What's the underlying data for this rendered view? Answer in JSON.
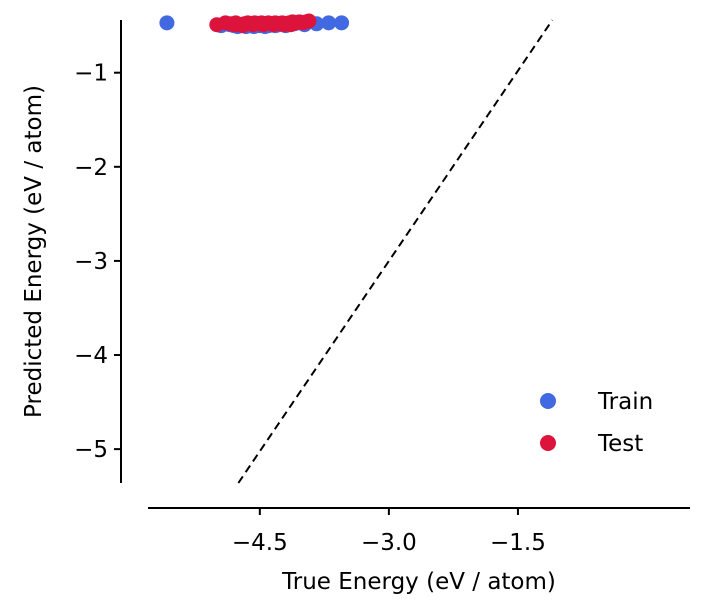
{
  "chart_data": {
    "type": "scatter",
    "title": "",
    "xlabel": "True Energy (eV / atom)",
    "ylabel": "Predicted Energy (eV / atom)",
    "xlim": [
      -5.8,
      0.5
    ],
    "ylim": [
      -5.36,
      -0.44
    ],
    "xticks": [
      -4.5,
      -3.0,
      -1.5
    ],
    "xtick_labels": [
      "−4.5",
      "−3.0",
      "−1.5"
    ],
    "yticks": [
      -5,
      -4,
      -3,
      -2,
      -1
    ],
    "ytick_labels": [
      "−5",
      "−4",
      "−3",
      "−2",
      "−1"
    ],
    "grid": false,
    "legend_position": "lower-right",
    "reference_line": {
      "style": "dashed",
      "color": "#000000",
      "x": [
        -4.75,
        -1.1
      ],
      "y": [
        -5.36,
        -0.44
      ]
    },
    "series": [
      {
        "name": "Train",
        "color": "#4169e1",
        "points": [
          [
            -5.58,
            -0.47
          ],
          [
            -4.95,
            -0.5
          ],
          [
            -4.85,
            -0.49
          ],
          [
            -4.8,
            -0.5
          ],
          [
            -4.76,
            -0.51
          ],
          [
            -4.72,
            -0.5
          ],
          [
            -4.7,
            -0.49
          ],
          [
            -4.66,
            -0.51
          ],
          [
            -4.63,
            -0.5
          ],
          [
            -4.6,
            -0.49
          ],
          [
            -4.57,
            -0.51
          ],
          [
            -4.54,
            -0.5
          ],
          [
            -4.5,
            -0.5
          ],
          [
            -4.47,
            -0.49
          ],
          [
            -4.44,
            -0.51
          ],
          [
            -4.4,
            -0.5
          ],
          [
            -4.36,
            -0.49
          ],
          [
            -4.32,
            -0.5
          ],
          [
            -4.28,
            -0.49
          ],
          [
            -4.24,
            -0.48
          ],
          [
            -4.2,
            -0.5
          ],
          [
            -4.16,
            -0.48
          ],
          [
            -4.1,
            -0.48
          ],
          [
            -4.05,
            -0.47
          ],
          [
            -3.98,
            -0.49
          ],
          [
            -3.84,
            -0.48
          ],
          [
            -3.7,
            -0.47
          ],
          [
            -3.55,
            -0.47
          ]
        ]
      },
      {
        "name": "Test",
        "color": "#dc143c",
        "points": [
          [
            -5.0,
            -0.49
          ],
          [
            -4.9,
            -0.47
          ],
          [
            -4.84,
            -0.48
          ],
          [
            -4.78,
            -0.47
          ],
          [
            -4.74,
            -0.49
          ],
          [
            -4.68,
            -0.48
          ],
          [
            -4.64,
            -0.47
          ],
          [
            -4.6,
            -0.48
          ],
          [
            -4.56,
            -0.47
          ],
          [
            -4.52,
            -0.48
          ],
          [
            -4.48,
            -0.47
          ],
          [
            -4.44,
            -0.48
          ],
          [
            -4.4,
            -0.47
          ],
          [
            -4.36,
            -0.48
          ],
          [
            -4.32,
            -0.47
          ],
          [
            -4.28,
            -0.48
          ],
          [
            -4.24,
            -0.47
          ],
          [
            -4.2,
            -0.48
          ],
          [
            -4.16,
            -0.47
          ],
          [
            -4.12,
            -0.46
          ],
          [
            -4.08,
            -0.47
          ],
          [
            -4.04,
            -0.46
          ],
          [
            -4.0,
            -0.47
          ],
          [
            -3.96,
            -0.46
          ],
          [
            -3.93,
            -0.45
          ],
          [
            -4.8,
            -0.49
          ],
          [
            -4.7,
            -0.5
          ],
          [
            -4.58,
            -0.49
          ],
          [
            -4.46,
            -0.49
          ],
          [
            -4.34,
            -0.49
          ],
          [
            -4.22,
            -0.49
          ],
          [
            -4.14,
            -0.49
          ]
        ]
      }
    ]
  }
}
